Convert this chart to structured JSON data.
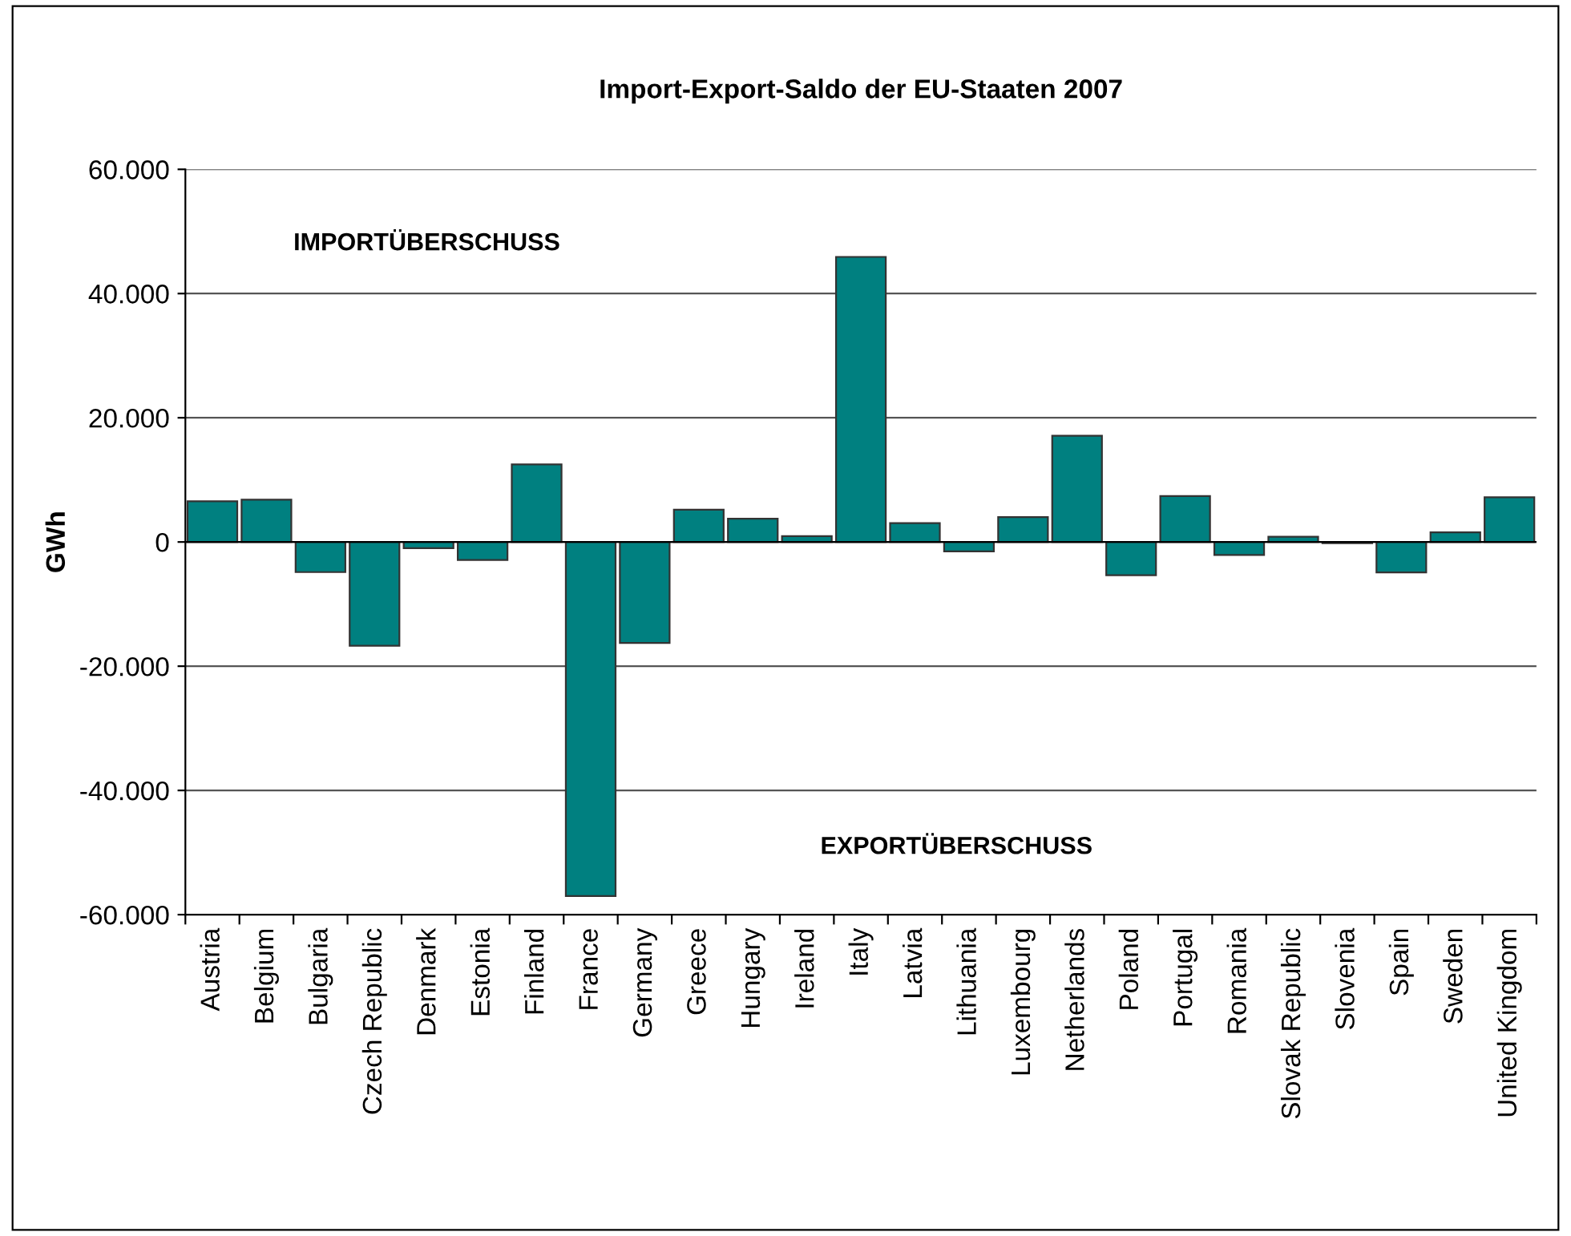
{
  "chart_data": {
    "type": "bar",
    "title": "Import-Export-Saldo der EU-Staaten 2007",
    "ylabel": "GWh",
    "categories": [
      "Austria",
      "Belgium",
      "Bulgaria",
      "Czech Republic",
      "Denmark",
      "Estonia",
      "Finland",
      "France",
      "Germany",
      "Greece",
      "Hungary",
      "Ireland",
      "Italy",
      "Latvia",
      "Lithuania",
      "Luxembourg",
      "Netherlands",
      "Poland",
      "Portugal",
      "Romania",
      "Slovak Republic",
      "Slovenia",
      "Spain",
      "Sweden",
      "United Kingdom"
    ],
    "values": [
      6550,
      6800,
      -4850,
      -16700,
      -1000,
      -2900,
      12500,
      -57000,
      -16250,
      5200,
      3750,
      950,
      45900,
      3050,
      -1500,
      4000,
      17100,
      -5350,
      7400,
      -2100,
      850,
      -200,
      -4900,
      1550,
      7200
    ],
    "color": "#008080",
    "ylim": [
      -60000,
      60000
    ],
    "yticks": [
      {
        "value": -60000,
        "label": "-60.000"
      },
      {
        "value": -40000,
        "label": "-40.000"
      },
      {
        "value": -20000,
        "label": "-20.000"
      },
      0,
      {
        "value": 20000,
        "label": "20.000"
      },
      {
        "value": 40000,
        "label": "40.000"
      },
      {
        "value": 60000,
        "label": "60.000"
      }
    ],
    "grid": "y",
    "annotations": [
      "IMPORTÜBERSCHUSS",
      "EXPORTÜBERSCHUSS"
    ]
  }
}
